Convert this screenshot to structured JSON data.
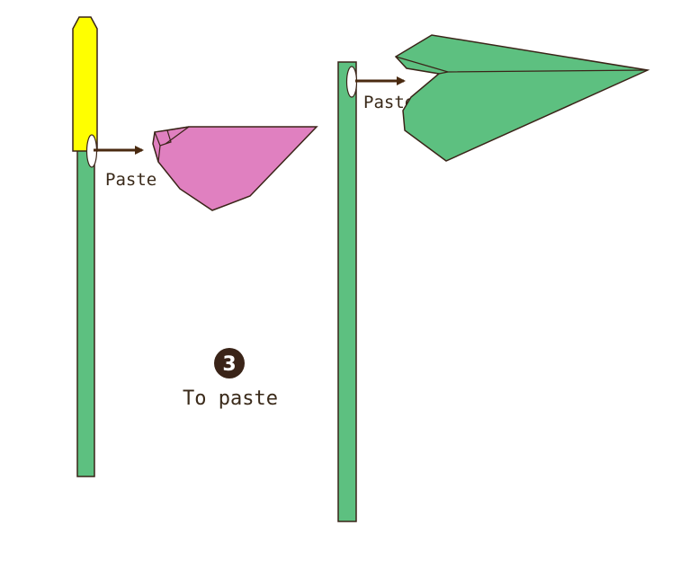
{
  "colors": {
    "stem": "#5dc080",
    "leaf": "#5dc080",
    "bud": "#ffff00",
    "petal": "#e080c0",
    "outline": "#3a2418",
    "arrow": "#4a2a10",
    "text": "#3a2a1a"
  },
  "labels": {
    "paste_left": "Paste",
    "paste_right": "Paste",
    "step_number": "3",
    "step_title": "To paste"
  }
}
